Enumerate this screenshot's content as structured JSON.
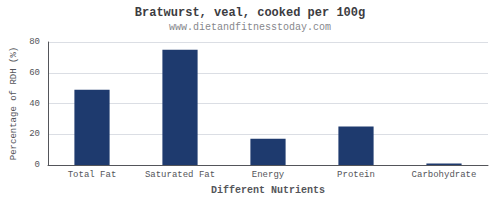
{
  "chart_data": {
    "type": "bar",
    "title": "Bratwurst, veal, cooked per 100g",
    "subtitle": "www.dietandfitnesstoday.com",
    "xlabel": "Different Nutrients",
    "ylabel": "Percentage of RDH (%)",
    "categories": [
      "Total Fat",
      "Saturated Fat",
      "Energy",
      "Protein",
      "Carbohydrate"
    ],
    "values": [
      49,
      75,
      17,
      25,
      1
    ],
    "color": "#1e3a6e",
    "ylim": [
      0,
      80
    ],
    "yticks": [
      0,
      20,
      40,
      60,
      80
    ],
    "grid": true
  }
}
